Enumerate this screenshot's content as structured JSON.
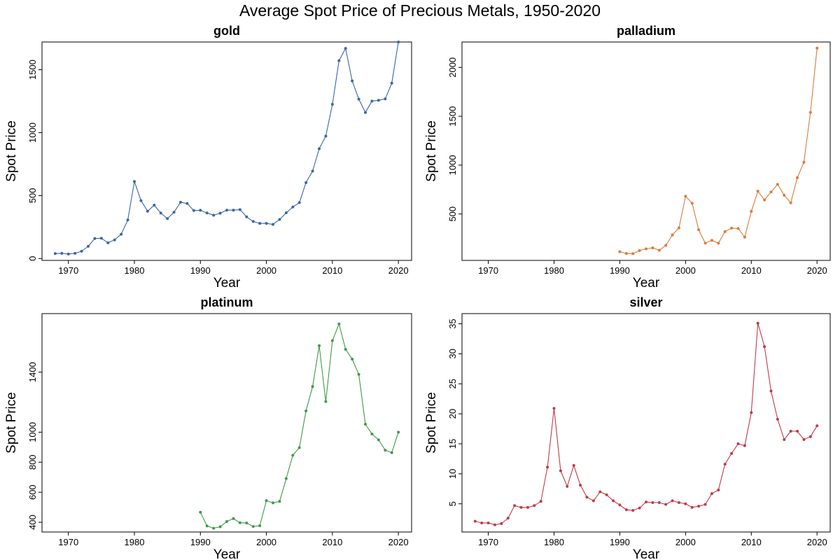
{
  "title": "Average Spot Price of Precious Metals, 1950-2020",
  "colors": {
    "gold": "#3a66a8",
    "palladium": "#dd7a3c",
    "platinum": "#3f9a4a",
    "silver": "#c23a4a"
  },
  "chart_data": [
    {
      "type": "line",
      "title": "gold",
      "xlabel": "Year",
      "ylabel": "Spot Price",
      "xlim": [
        1966,
        2022
      ],
      "ylim": [
        -15,
        1720
      ],
      "xticks": [
        1970,
        1980,
        1990,
        2000,
        2010,
        2020
      ],
      "yticks": [
        0,
        500,
        1000,
        1500
      ],
      "grid": false,
      "series": [
        {
          "x": [
            1968,
            1969,
            1970,
            1971,
            1972,
            1973,
            1974,
            1975,
            1976,
            1977,
            1978,
            1979,
            1980,
            1981,
            1982,
            1983,
            1984,
            1985,
            1986,
            1987,
            1988,
            1989,
            1990,
            1991,
            1992,
            1993,
            1994,
            1995,
            1996,
            1997,
            1998,
            1999,
            2000,
            2001,
            2002,
            2003,
            2004,
            2005,
            2006,
            2007,
            2008,
            2009,
            2010,
            2011,
            2012,
            2013,
            2014,
            2015,
            2016,
            2017,
            2018,
            2019,
            2020
          ],
          "y": [
            39,
            41,
            36,
            41,
            58,
            97,
            159,
            161,
            125,
            148,
            193,
            306,
            612,
            460,
            376,
            424,
            361,
            317,
            368,
            447,
            437,
            381,
            383,
            362,
            344,
            360,
            384,
            384,
            388,
            331,
            294,
            279,
            279,
            271,
            310,
            363,
            409,
            444,
            603,
            695,
            872,
            972,
            1225,
            1572,
            1669,
            1411,
            1266,
            1160,
            1251,
            1257,
            1268,
            1393,
            1770
          ]
        }
      ]
    },
    {
      "type": "line",
      "title": "palladium",
      "xlabel": "Year",
      "ylabel": "Spot Price",
      "xlim": [
        1966,
        2022
      ],
      "ylim": [
        25,
        2260
      ],
      "xticks": [
        1970,
        1980,
        1990,
        2000,
        2010,
        2020
      ],
      "yticks": [
        500,
        1000,
        1500,
        2000
      ],
      "grid": false,
      "series": [
        {
          "x": [
            1990,
            1991,
            1992,
            1993,
            1994,
            1995,
            1996,
            1997,
            1998,
            1999,
            2000,
            2001,
            2002,
            2003,
            2004,
            2005,
            2006,
            2007,
            2008,
            2009,
            2010,
            2011,
            2012,
            2013,
            2014,
            2015,
            2016,
            2017,
            2018,
            2019,
            2020
          ],
          "y": [
            114,
            96,
            94,
            125,
            143,
            153,
            129,
            179,
            286,
            358,
            681,
            610,
            338,
            201,
            230,
            201,
            320,
            355,
            352,
            263,
            526,
            733,
            644,
            725,
            803,
            692,
            614,
            871,
            1029,
            1539,
            2197
          ]
        }
      ]
    },
    {
      "type": "line",
      "title": "platinum",
      "xlabel": "Year",
      "ylabel": "Spot Price",
      "xlim": [
        1966,
        2022
      ],
      "ylim": [
        335,
        1790
      ],
      "xticks": [
        1970,
        1980,
        1990,
        2000,
        2010,
        2020
      ],
      "yticks": [
        400,
        600,
        800,
        1000,
        1400
      ],
      "grid": false,
      "series": [
        {
          "x": [
            1990,
            1991,
            1992,
            1993,
            1994,
            1995,
            1996,
            1997,
            1998,
            1999,
            2000,
            2001,
            2002,
            2003,
            2004,
            2005,
            2006,
            2007,
            2008,
            2009,
            2010,
            2011,
            2012,
            2013,
            2014,
            2015,
            2016,
            2017,
            2018,
            2019,
            2020
          ],
          "y": [
            467,
            375,
            360,
            370,
            405,
            424,
            397,
            395,
            372,
            377,
            544,
            529,
            539,
            691,
            846,
            897,
            1142,
            1304,
            1576,
            1204,
            1610,
            1721,
            1552,
            1487,
            1385,
            1053,
            988,
            949,
            880,
            864,
            1000
          ]
        }
      ]
    },
    {
      "type": "line",
      "title": "silver",
      "xlabel": "Year",
      "ylabel": "Spot Price",
      "xlim": [
        1966,
        2022
      ],
      "ylim": [
        0.3,
        36.7
      ],
      "xticks": [
        1970,
        1980,
        1990,
        2000,
        2010,
        2020
      ],
      "yticks": [
        5,
        10,
        15,
        20,
        25,
        30,
        35
      ],
      "grid": false,
      "series": [
        {
          "x": [
            1968,
            1969,
            1970,
            1971,
            1972,
            1973,
            1974,
            1975,
            1976,
            1977,
            1978,
            1979,
            1980,
            1981,
            1982,
            1983,
            1984,
            1985,
            1986,
            1987,
            1988,
            1989,
            1990,
            1991,
            1992,
            1993,
            1994,
            1995,
            1996,
            1997,
            1998,
            1999,
            2000,
            2001,
            2002,
            2003,
            2004,
            2005,
            2006,
            2007,
            2008,
            2009,
            2010,
            2011,
            2012,
            2013,
            2014,
            2015,
            2016,
            2017,
            2018,
            2019,
            2020
          ],
          "y": [
            2.1,
            1.8,
            1.8,
            1.5,
            1.7,
            2.6,
            4.7,
            4.4,
            4.4,
            4.7,
            5.4,
            11.1,
            20.9,
            10.5,
            7.9,
            11.4,
            8.1,
            6.1,
            5.5,
            7.0,
            6.5,
            5.5,
            4.8,
            4.0,
            3.9,
            4.3,
            5.3,
            5.2,
            5.2,
            4.9,
            5.5,
            5.2,
            5.0,
            4.4,
            4.6,
            4.9,
            6.7,
            7.3,
            11.6,
            13.4,
            15.0,
            14.7,
            20.2,
            35.1,
            31.2,
            23.8,
            19.1,
            15.7,
            17.1,
            17.1,
            15.7,
            16.2,
            18.0
          ]
        }
      ]
    }
  ]
}
